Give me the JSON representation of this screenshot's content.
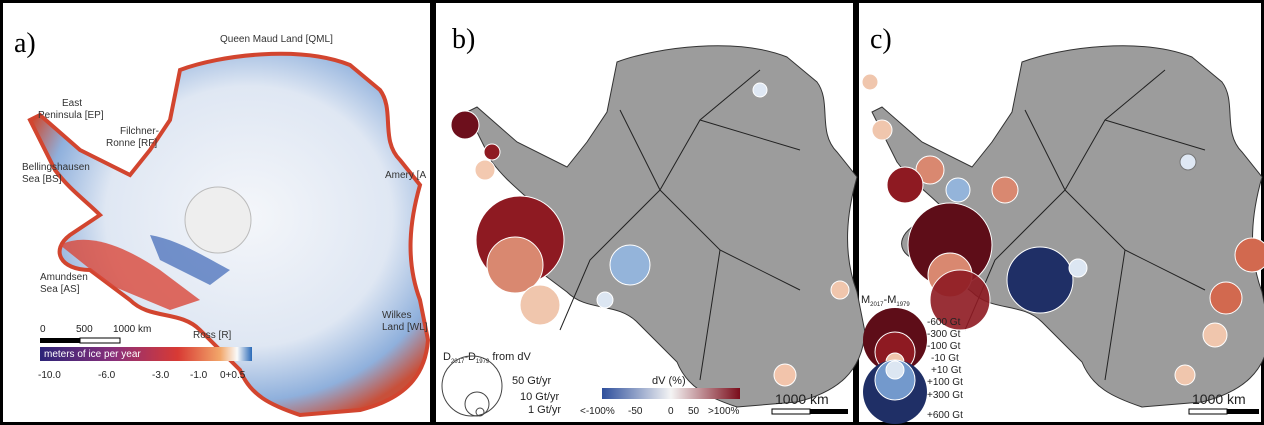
{
  "panels": [
    {
      "label": "a)",
      "annotations": [
        [
          "Queen Maud Land [QML]"
        ],
        [
          "East",
          "Peninsula [EP]"
        ],
        [
          "Filchner-",
          "Ronne [RF]"
        ],
        [
          "Bellingshausen",
          "Sea [BS]"
        ],
        [
          "Amery [A"
        ],
        [
          "Amundsen",
          "Sea [AS]"
        ],
        [
          "Ross [R]"
        ],
        [
          "Wilkes",
          "Land [WL]"
        ]
      ],
      "scale_bar": [
        "0",
        "500",
        "1000 km"
      ],
      "colorbar": {
        "title": "meters of ice per year",
        "ticks": [
          "-10.0",
          "-6.0",
          "-3.0",
          "-1.0",
          "0+0.5"
        ]
      }
    },
    {
      "label": "b)",
      "legend": {
        "title": [
          "D",
          "2017",
          "-D",
          "1979",
          " from dV"
        ],
        "sizes": [
          "50 Gt/yr",
          "10 Gt/yr",
          "1 Gt/yr"
        ]
      },
      "colorbar": {
        "title": "dV (%)",
        "ticks": [
          "<-100%",
          "-50",
          "0",
          "50",
          ">100%"
        ]
      },
      "scale_bar": "1000 km"
    },
    {
      "label": "c)",
      "legend": {
        "title": [
          "M",
          "2017",
          "-M",
          "1979"
        ],
        "entries": [
          "-600 Gt",
          "-300 Gt",
          "-100 Gt",
          "-10 Gt",
          "+10 Gt",
          "+100 Gt",
          "+300 Gt",
          "+600 Gt"
        ]
      },
      "scale_bar": "1000 km"
    }
  ]
}
